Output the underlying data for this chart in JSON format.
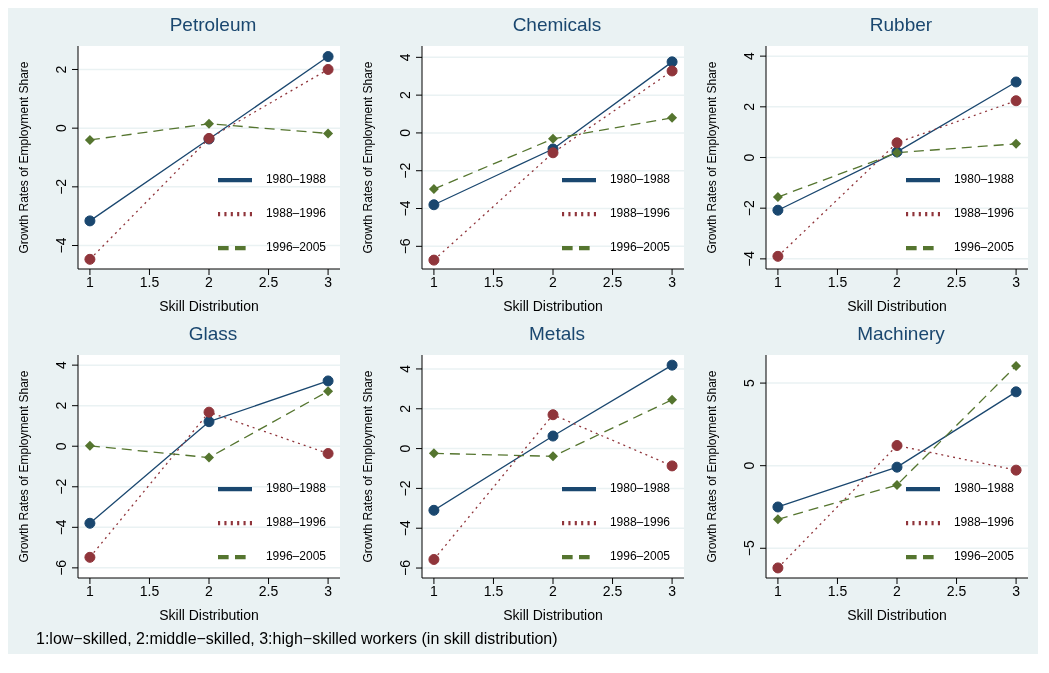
{
  "chart_data": [
    {
      "type": "line",
      "title": "Petroleum",
      "xlabel": "Skill Distribution",
      "ylabel": "Growth Rates of Employment Share",
      "x": [
        1,
        2,
        3
      ],
      "xlim": [
        0.9,
        3.1
      ],
      "xticks": [
        1,
        1.5,
        2,
        2.5,
        3
      ],
      "ylim": [
        -4.8,
        2.8
      ],
      "yticks": [
        -4,
        -2,
        0,
        2
      ],
      "grid": "y",
      "legend": "bottom right",
      "series": [
        {
          "name": "1980–1988",
          "color": "#1a476f",
          "marker": "circle",
          "line_style": "solid",
          "values": [
            -3.16,
            -0.37,
            2.44
          ]
        },
        {
          "name": "1988–1996",
          "color": "#90353b",
          "marker": "circle",
          "line_style": "dotted",
          "values": [
            -4.47,
            -0.35,
            2.0
          ]
        },
        {
          "name": "1996–2005",
          "color": "#55752f",
          "marker": "diamond",
          "line_style": "dashed",
          "values": [
            -0.4,
            0.15,
            -0.18
          ]
        }
      ]
    },
    {
      "type": "line",
      "title": "Chemicals",
      "xlabel": "Skill Distribution",
      "ylabel": "Growth Rates of Employment Share",
      "x": [
        1,
        2,
        3
      ],
      "xlim": [
        0.9,
        3.1
      ],
      "xticks": [
        1,
        1.5,
        2,
        2.5,
        3
      ],
      "ylim": [
        -7.2,
        4.6
      ],
      "yticks": [
        -6,
        -4,
        -2,
        0,
        2,
        4
      ],
      "grid": "y",
      "legend": "bottom right",
      "series": [
        {
          "name": "1980–1988",
          "color": "#1a476f",
          "marker": "circle",
          "line_style": "solid",
          "values": [
            -3.8,
            -0.85,
            3.76
          ]
        },
        {
          "name": "1988–1996",
          "color": "#90353b",
          "marker": "circle",
          "line_style": "dotted",
          "values": [
            -6.73,
            -1.05,
            3.28
          ]
        },
        {
          "name": "1996–2005",
          "color": "#55752f",
          "marker": "diamond",
          "line_style": "dashed",
          "values": [
            -2.97,
            -0.31,
            0.8
          ]
        }
      ]
    },
    {
      "type": "line",
      "title": "Rubber",
      "xlabel": "Skill Distribution",
      "ylabel": "Growth Rates of Employment Share",
      "x": [
        1,
        2,
        3
      ],
      "xlim": [
        0.9,
        3.1
      ],
      "xticks": [
        1,
        1.5,
        2,
        2.5,
        3
      ],
      "ylim": [
        -4.4,
        4.4
      ],
      "yticks": [
        -4,
        -2,
        0,
        2,
        4
      ],
      "grid": "y",
      "legend": "bottom right",
      "series": [
        {
          "name": "1980–1988",
          "color": "#1a476f",
          "marker": "circle",
          "line_style": "solid",
          "values": [
            -2.08,
            0.22,
            2.98
          ]
        },
        {
          "name": "1988–1996",
          "color": "#90353b",
          "marker": "circle",
          "line_style": "dotted",
          "values": [
            -3.9,
            0.58,
            2.24
          ]
        },
        {
          "name": "1996–2005",
          "color": "#55752f",
          "marker": "diamond",
          "line_style": "dashed",
          "values": [
            -1.56,
            0.19,
            0.54
          ]
        }
      ]
    },
    {
      "type": "line",
      "title": "Glass",
      "xlabel": "Skill Distribution",
      "ylabel": "Growth Rates of Employment Share",
      "x": [
        1,
        2,
        3
      ],
      "xlim": [
        0.9,
        3.1
      ],
      "xticks": [
        1,
        1.5,
        2,
        2.5,
        3
      ],
      "ylim": [
        -6.5,
        4.5
      ],
      "yticks": [
        -6,
        -4,
        -2,
        0,
        2,
        4
      ],
      "grid": "y",
      "legend": "bottom right",
      "series": [
        {
          "name": "1980–1988",
          "color": "#1a476f",
          "marker": "circle",
          "line_style": "solid",
          "values": [
            -3.8,
            1.21,
            3.22
          ]
        },
        {
          "name": "1988–1996",
          "color": "#90353b",
          "marker": "circle",
          "line_style": "dotted",
          "values": [
            -5.48,
            1.68,
            -0.36
          ]
        },
        {
          "name": "1996–2005",
          "color": "#55752f",
          "marker": "diamond",
          "line_style": "dashed",
          "values": [
            0.02,
            -0.56,
            2.71
          ]
        }
      ]
    },
    {
      "type": "line",
      "title": "Metals",
      "xlabel": "Skill Distribution",
      "ylabel": "Growth Rates of Employment Share",
      "x": [
        1,
        2,
        3
      ],
      "xlim": [
        0.9,
        3.1
      ],
      "xticks": [
        1,
        1.5,
        2,
        2.5,
        3
      ],
      "ylim": [
        -6.5,
        4.7
      ],
      "yticks": [
        -6,
        -4,
        -2,
        0,
        2,
        4
      ],
      "grid": "y",
      "legend": "bottom right",
      "series": [
        {
          "name": "1980–1988",
          "color": "#1a476f",
          "marker": "circle",
          "line_style": "solid",
          "values": [
            -3.1,
            0.63,
            4.19
          ]
        },
        {
          "name": "1988–1996",
          "color": "#90353b",
          "marker": "circle",
          "line_style": "dotted",
          "values": [
            -5.57,
            1.7,
            -0.87
          ]
        },
        {
          "name": "1996–2005",
          "color": "#55752f",
          "marker": "diamond",
          "line_style": "dashed",
          "values": [
            -0.24,
            -0.39,
            2.45
          ]
        }
      ]
    },
    {
      "type": "line",
      "title": "Machinery",
      "xlabel": "Skill Distribution",
      "ylabel": "Growth Rates of Employment Share",
      "x": [
        1,
        2,
        3
      ],
      "xlim": [
        0.9,
        3.1
      ],
      "xticks": [
        1,
        1.5,
        2,
        2.5,
        3
      ],
      "ylim": [
        -6.8,
        6.7
      ],
      "yticks": [
        -5,
        0,
        5
      ],
      "grid": "y",
      "legend": "bottom right",
      "annotations": [
        "1:low−skilled, 2:middle−skilled, 3:high−skilled workers (in skill distribution)"
      ],
      "series": [
        {
          "name": "1980–1988",
          "color": "#1a476f",
          "marker": "circle",
          "line_style": "solid",
          "values": [
            -2.5,
            -0.09,
            4.47
          ]
        },
        {
          "name": "1988–1996",
          "color": "#90353b",
          "marker": "circle",
          "line_style": "dotted",
          "values": [
            -6.19,
            1.22,
            -0.27
          ]
        },
        {
          "name": "1996–2005",
          "color": "#55752f",
          "marker": "diamond",
          "line_style": "dashed",
          "values": [
            -3.25,
            -1.17,
            6.04
          ]
        }
      ]
    }
  ]
}
